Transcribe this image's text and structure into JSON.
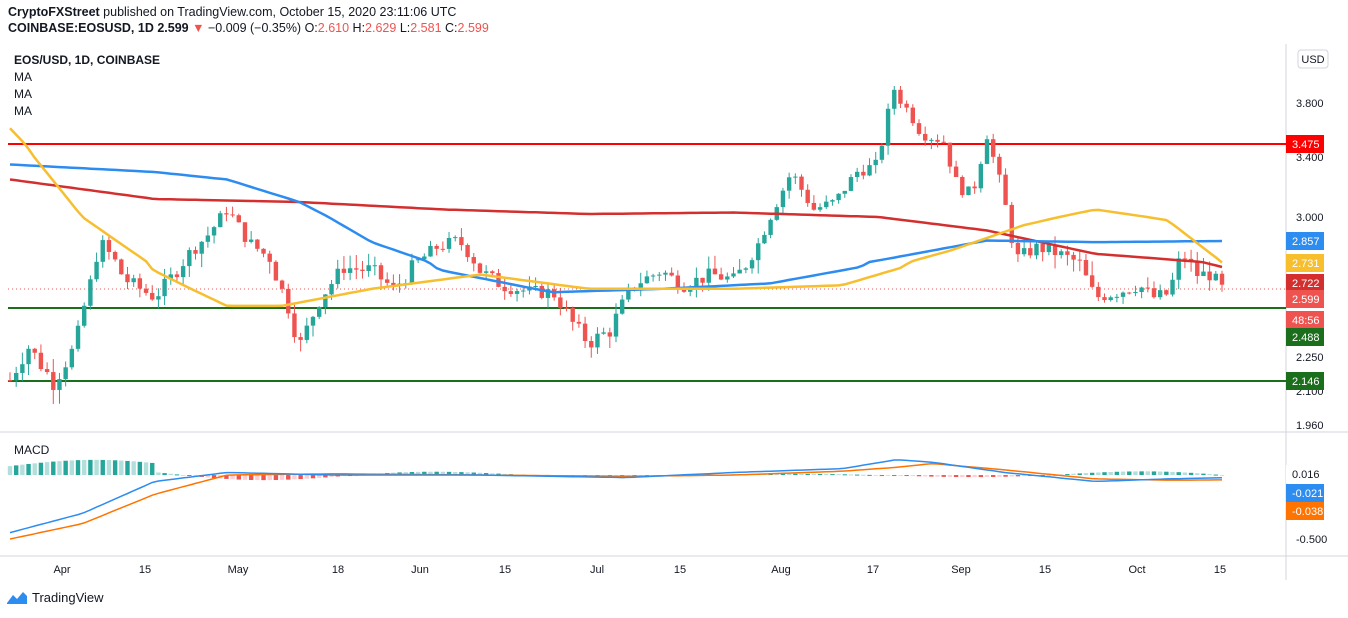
{
  "header": {
    "publisher": "CryptoFXStreet",
    "published_text": "published on TradingView.com, October 15, 2020 23:11:06 UTC",
    "symbol": "COINBASE:EOSUSD, 1D",
    "last": "2.599",
    "change": "−0.009 (−0.35%)",
    "o_label": "O:",
    "o_value": "2.610",
    "h_label": "H:",
    "h_value": "2.629",
    "l_label": "L:",
    "l_value": "2.581",
    "c_label": "C:",
    "c_value": "2.599"
  },
  "legend": {
    "title": "EOS/USD, 1D, COINBASE",
    "ma1": "MA",
    "ma2": "MA",
    "ma3": "MA"
  },
  "currency_button": "USD",
  "footer": {
    "brand": "TradingView"
  },
  "colors": {
    "up": "#26a69a",
    "down": "#ef5350",
    "ma_yellow": "#f7be2e",
    "ma_blue": "#2d8cf0",
    "ma_red": "#d32f2f",
    "resistance": "#ff0000",
    "support": "#1b6e1b",
    "macd_line": "#2d8cf0",
    "signal_line": "#ff7300"
  },
  "chart_data": [
    {
      "type": "candlestick",
      "title": "EOS/USD, 1D, COINBASE",
      "x_tick_labels": [
        "Apr",
        "15",
        "May",
        "18",
        "Jun",
        "15",
        "Jul",
        "15",
        "Aug",
        "17",
        "Sep",
        "15",
        "Oct",
        "15"
      ],
      "y_tick_labels": [
        "3.800",
        "3.400",
        "3.000",
        "2.250",
        "2.100",
        "1.960"
      ],
      "ylim": [
        1.9,
        4.2
      ],
      "price_labels": [
        {
          "text": "3.475",
          "value": 3.475,
          "color": "#ff0000"
        },
        {
          "text": "2.857",
          "value": 2.857,
          "color": "#2d8cf0"
        },
        {
          "text": "2.731",
          "value": 2.731,
          "color": "#f7be2e"
        },
        {
          "text": "2.722",
          "value": 2.722,
          "color": "#d32f2f"
        },
        {
          "text": "2.599",
          "value": 2.599,
          "color": "#ef5350"
        },
        {
          "text": "48:56",
          "value": 2.54,
          "color": "#ef5350"
        },
        {
          "text": "2.488",
          "value": 2.488,
          "color": "#1b6e1b"
        },
        {
          "text": "2.146",
          "value": 2.146,
          "color": "#1b6e1b"
        }
      ],
      "horizontal_levels": [
        {
          "value": 3.475,
          "color": "#ff0000"
        },
        {
          "value": 2.488,
          "color": "#1b6e1b"
        },
        {
          "value": 2.146,
          "color": "#1b6e1b"
        }
      ],
      "series": [
        {
          "name": "MA",
          "color": "#f7be2e"
        },
        {
          "name": "MA",
          "color": "#2d8cf0"
        },
        {
          "name": "MA",
          "color": "#d32f2f"
        }
      ],
      "last_close": 2.599
    },
    {
      "type": "bar",
      "title": "MACD",
      "y_tick_labels": [
        "-0.500"
      ],
      "ylim": [
        -0.55,
        0.2
      ],
      "value_labels": [
        {
          "text": "0.016",
          "value": 0.016,
          "color": "#26a69a"
        },
        {
          "text": "-0.021",
          "value": -0.021,
          "color": "#2d8cf0"
        },
        {
          "text": "-0.038",
          "value": -0.038,
          "color": "#ff7300"
        }
      ]
    }
  ]
}
